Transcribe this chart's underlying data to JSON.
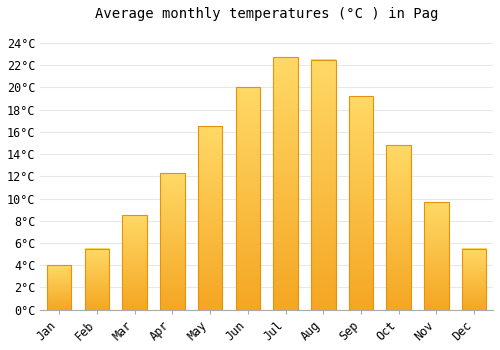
{
  "title": "Average monthly temperatures (°C ) in Pag",
  "months": [
    "Jan",
    "Feb",
    "Mar",
    "Apr",
    "May",
    "Jun",
    "Jul",
    "Aug",
    "Sep",
    "Oct",
    "Nov",
    "Dec"
  ],
  "values": [
    4.0,
    5.5,
    8.5,
    12.3,
    16.5,
    20.0,
    22.7,
    22.5,
    19.2,
    14.8,
    9.7,
    5.5
  ],
  "bar_color_bottom": "#F5A623",
  "bar_color_top": "#FFD966",
  "bar_edge_color": "#E6930A",
  "background_color": "#FFFFFF",
  "grid_color": "#E8E8E8",
  "ylim": [
    0,
    25.5
  ],
  "yticks": [
    0,
    2,
    4,
    6,
    8,
    10,
    12,
    14,
    16,
    18,
    20,
    22,
    24
  ],
  "title_fontsize": 10,
  "tick_fontsize": 8.5,
  "title_font": "monospace",
  "tick_font": "monospace"
}
